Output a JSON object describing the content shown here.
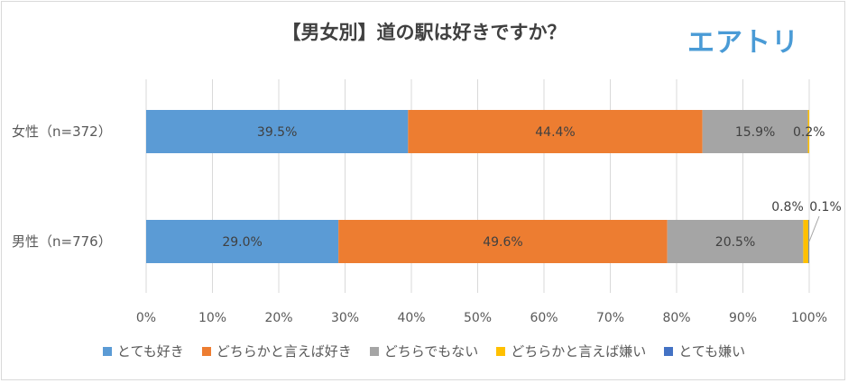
{
  "brand": "エアトリ",
  "chart_data": {
    "type": "bar",
    "orientation": "horizontal",
    "stacked": "percent",
    "title": "【男女別】道の駅は好きですか？",
    "categories": [
      "女性（n=372）",
      "男性（n=776）"
    ],
    "series": [
      {
        "name": "とても好き",
        "color": "#5b9bd5",
        "values": [
          39.5,
          29.0
        ],
        "labels": [
          "39.5%",
          "29.0%"
        ]
      },
      {
        "name": "どちらかと言えば好き",
        "color": "#ed7d31",
        "values": [
          44.4,
          49.6
        ],
        "labels": [
          "44.4%",
          "49.6%"
        ]
      },
      {
        "name": "どちらでもない",
        "color": "#a5a5a5",
        "values": [
          15.9,
          20.5
        ],
        "labels": [
          "15.9%",
          "20.5%"
        ]
      },
      {
        "name": "どちらかと言えば嫌い",
        "color": "#ffc000",
        "values": [
          0.2,
          0.8
        ],
        "labels": [
          "0.2%",
          "0.8%"
        ]
      },
      {
        "name": "とても嫌い",
        "color": "#4472c4",
        "values": [
          0.0,
          0.1
        ],
        "labels": [
          "",
          "0.1%"
        ]
      }
    ],
    "xlim": [
      0,
      100
    ],
    "xticks": [
      "0%",
      "10%",
      "20%",
      "30%",
      "40%",
      "50%",
      "60%",
      "70%",
      "80%",
      "90%",
      "100%"
    ],
    "grid": true,
    "legend": "bottom"
  }
}
